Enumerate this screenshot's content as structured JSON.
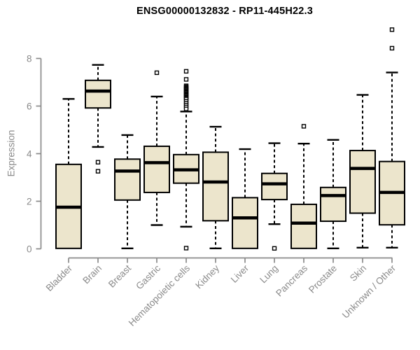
{
  "title": "ENSG00000132832 - RP11-445H22.3",
  "colors": {
    "box_fill": "#ECE5CC",
    "box_border": "#000000",
    "median": "#000000",
    "whisker": "#000000",
    "axis": "#8a8a8a",
    "axis_text": "#8a8a8a",
    "title_text": "#000000",
    "background": "#ffffff"
  },
  "chart_data": {
    "type": "boxplot",
    "title": "ENSG00000132832 - RP11-445H22.3",
    "xlabel": "",
    "ylabel": "Expression",
    "y_ticks": [
      0,
      2,
      4,
      6,
      8
    ],
    "ylim": [
      -0.4,
      9.6
    ],
    "grid": "off",
    "legend": "none",
    "categories": [
      "Bladder",
      "Brain",
      "Breast",
      "Gastric",
      "Hematopoietic cells",
      "Kidney",
      "Liver",
      "Lung",
      "Pancreas",
      "Prostate",
      "Skin",
      "Unknown / Other"
    ],
    "series": [
      {
        "name": "Bladder",
        "whisker_low": 0.02,
        "q1": 0.02,
        "median": 1.75,
        "q3": 3.55,
        "whisker_high": 6.3,
        "outliers": []
      },
      {
        "name": "Brain",
        "whisker_low": 4.28,
        "q1": 5.92,
        "median": 6.63,
        "q3": 7.08,
        "whisker_high": 7.73,
        "outliers": [
          3.64,
          3.26
        ]
      },
      {
        "name": "Breast",
        "whisker_low": 0.02,
        "q1": 2.05,
        "median": 3.27,
        "q3": 3.77,
        "whisker_high": 4.78,
        "outliers": []
      },
      {
        "name": "Gastric",
        "whisker_low": 1.0,
        "q1": 2.37,
        "median": 3.62,
        "q3": 4.31,
        "whisker_high": 6.4,
        "outliers": [
          7.4
        ]
      },
      {
        "name": "Hematopoietic cells",
        "whisker_low": 0.93,
        "q1": 2.76,
        "median": 3.32,
        "q3": 3.96,
        "whisker_high": 5.77,
        "outliers": [
          7.46,
          7.12,
          6.85,
          6.81,
          6.77,
          6.73,
          6.69,
          6.65,
          6.61,
          6.57,
          6.53,
          6.49,
          6.45,
          6.41,
          6.37,
          6.33,
          6.29,
          6.2,
          6.12,
          6.04,
          5.96,
          5.88,
          0.03
        ]
      },
      {
        "name": "Kidney",
        "whisker_low": 0.02,
        "q1": 1.18,
        "median": 2.81,
        "q3": 4.06,
        "whisker_high": 5.13,
        "outliers": []
      },
      {
        "name": "Liver",
        "whisker_low": 0.02,
        "q1": 0.02,
        "median": 1.3,
        "q3": 2.15,
        "whisker_high": 4.19,
        "outliers": []
      },
      {
        "name": "Lung",
        "whisker_low": 1.04,
        "q1": 2.07,
        "median": 2.73,
        "q3": 3.17,
        "whisker_high": 4.44,
        "outliers": [
          0.02
        ]
      },
      {
        "name": "Pancreas",
        "whisker_low": 0.02,
        "q1": 0.02,
        "median": 1.08,
        "q3": 1.87,
        "whisker_high": 4.42,
        "outliers": [
          5.15
        ]
      },
      {
        "name": "Prostate",
        "whisker_low": 0.02,
        "q1": 1.16,
        "median": 2.24,
        "q3": 2.58,
        "whisker_high": 4.58,
        "outliers": []
      },
      {
        "name": "Skin",
        "whisker_low": 0.05,
        "q1": 1.5,
        "median": 3.38,
        "q3": 4.13,
        "whisker_high": 6.47,
        "outliers": []
      },
      {
        "name": "Unknown / Other",
        "whisker_low": 0.05,
        "q1": 1.01,
        "median": 2.37,
        "q3": 3.67,
        "whisker_high": 7.41,
        "outliers": [
          9.21,
          8.43
        ]
      }
    ]
  }
}
